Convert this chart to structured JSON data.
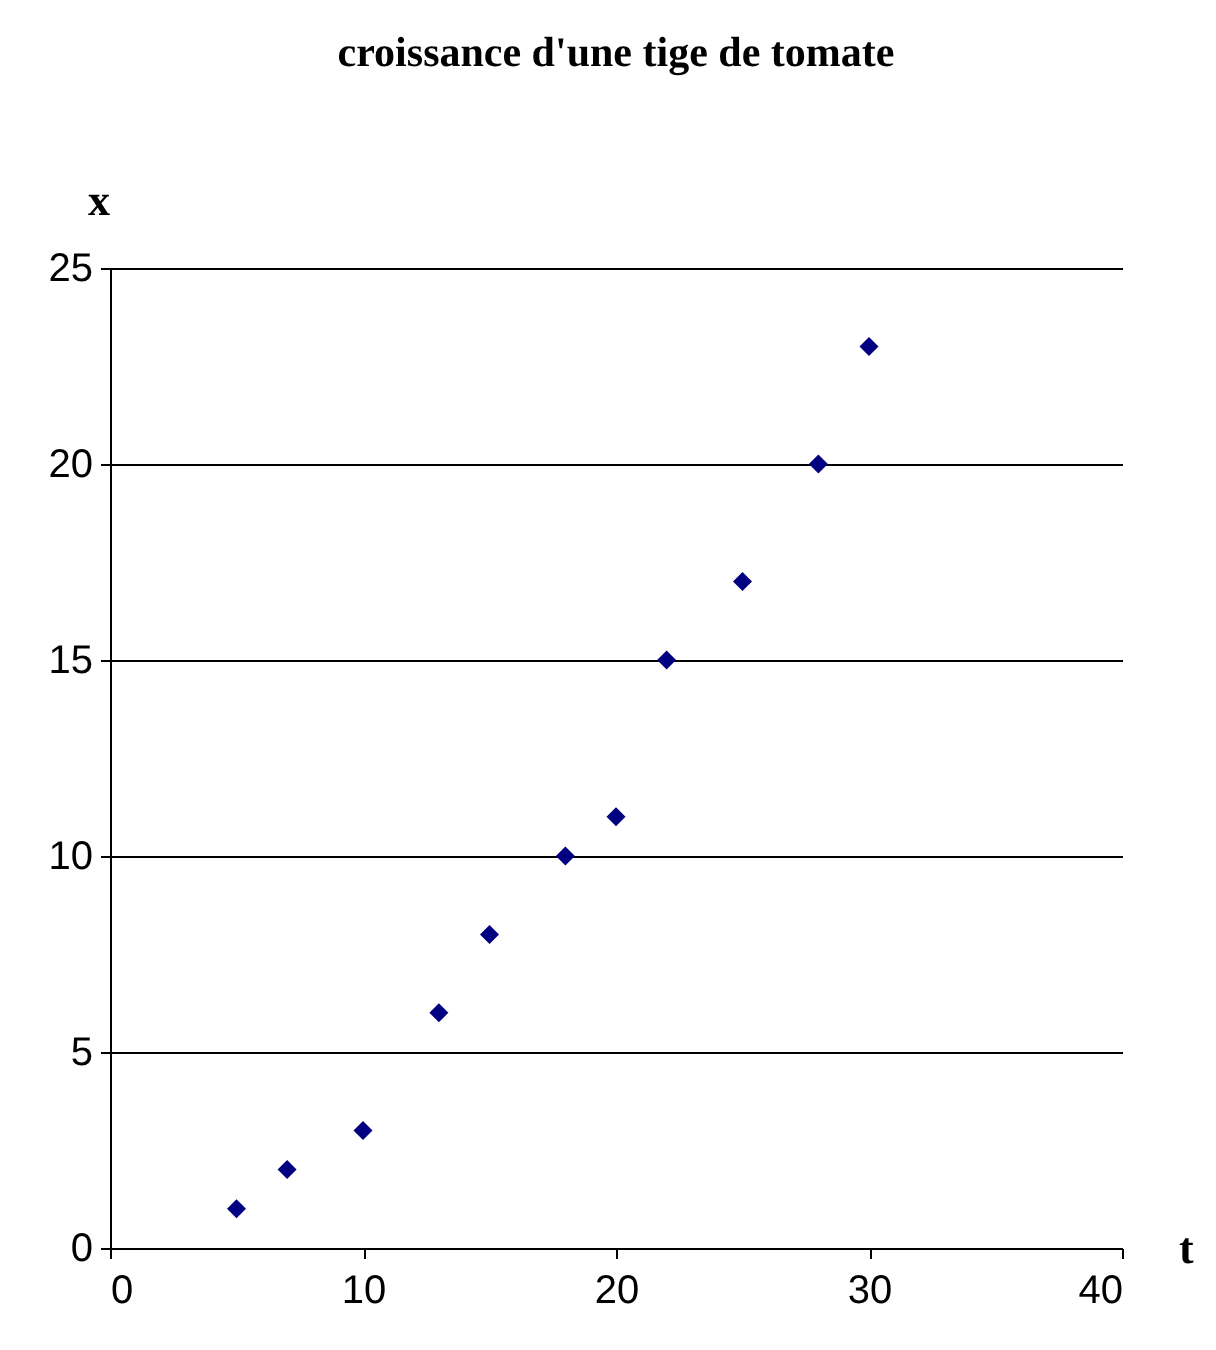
{
  "chart_data": {
    "type": "scatter",
    "title": "croissance d'une tige de tomate",
    "xlabel": "t",
    "ylabel": "x",
    "x": [
      5,
      7,
      10,
      13,
      15,
      18,
      20,
      22,
      25,
      28,
      30
    ],
    "series": [
      {
        "color": "#000080",
        "values": [
          1,
          2,
          3,
          6,
          8,
          10,
          11,
          15,
          17,
          20,
          23
        ]
      }
    ],
    "xlim": [
      0,
      40
    ],
    "xticks": [
      0,
      10,
      20,
      30,
      40
    ],
    "ylim": [
      0,
      25
    ],
    "yticks": [
      0,
      5,
      10,
      15,
      20,
      25
    ],
    "grid": "y",
    "marker": "diamond"
  }
}
